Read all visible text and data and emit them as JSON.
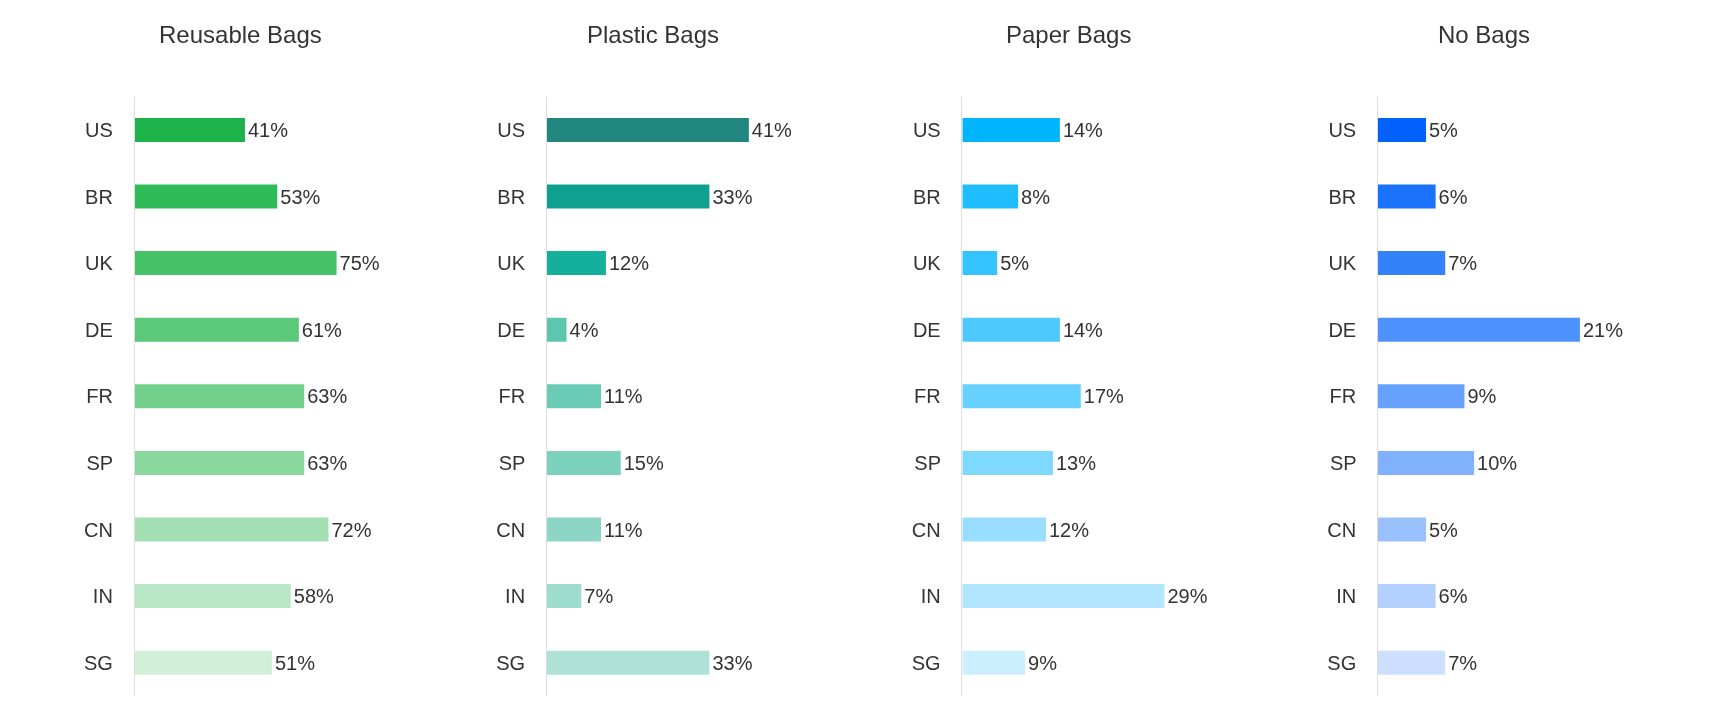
{
  "chart_data": [
    {
      "type": "bar",
      "orientation": "horizontal",
      "title": "Reusable Bags",
      "categories": [
        "US",
        "BR",
        "UK",
        "DE",
        "FR",
        "SP",
        "CN",
        "IN",
        "SG"
      ],
      "values": [
        41,
        53,
        75,
        61,
        63,
        63,
        72,
        58,
        51
      ],
      "value_labels": [
        "41%",
        "53%",
        "75%",
        "61%",
        "63%",
        "63%",
        "72%",
        "58%",
        "51%"
      ],
      "colors": [
        "#1db34a",
        "#2fbb57",
        "#45c268",
        "#5cc97a",
        "#73d08c",
        "#8bd89f",
        "#a2dfb2",
        "#b9e7c5",
        "#d0eed8"
      ]
    },
    {
      "type": "bar",
      "orientation": "horizontal",
      "title": "Plastic Bags",
      "categories": [
        "US",
        "BR",
        "UK",
        "DE",
        "FR",
        "SP",
        "CN",
        "IN",
        "SG"
      ],
      "values": [
        41,
        33,
        12,
        4,
        11,
        15,
        11,
        7,
        33
      ],
      "value_labels": [
        "41%",
        "33%",
        "12%",
        "4%",
        "11%",
        "15%",
        "11%",
        "7%",
        "33%"
      ],
      "colors": [
        "#21867e",
        "#0fa08f",
        "#14b09b",
        "#5cc6ae",
        "#6bccb6",
        "#7cd1bd",
        "#8dd6c5",
        "#9edccd",
        "#afe2d6"
      ]
    },
    {
      "type": "bar",
      "orientation": "horizontal",
      "title": "Paper Bags",
      "categories": [
        "US",
        "BR",
        "UK",
        "DE",
        "FR",
        "SP",
        "CN",
        "IN",
        "SG"
      ],
      "values": [
        14,
        8,
        5,
        14,
        17,
        13,
        12,
        29,
        9
      ],
      "value_labels": [
        "14%",
        "8%",
        "5%",
        "14%",
        "17%",
        "13%",
        "12%",
        "29%",
        "9%"
      ],
      "colors": [
        "#00b5fe",
        "#1ebefe",
        "#33c3fe",
        "#4ec9fe",
        "#66d0fe",
        "#7fd8fe",
        "#99defe",
        "#b2e6fe",
        "#cceffe"
      ]
    },
    {
      "type": "bar",
      "orientation": "horizontal",
      "title": "No Bags",
      "categories": [
        "US",
        "BR",
        "UK",
        "DE",
        "FR",
        "SP",
        "CN",
        "IN",
        "SG"
      ],
      "values": [
        5,
        6,
        7,
        21,
        9,
        10,
        5,
        6,
        7
      ],
      "value_labels": [
        "5%",
        "6%",
        "7%",
        "21%",
        "9%",
        "10%",
        "5%",
        "6%",
        "7%"
      ],
      "colors": [
        "#0062fa",
        "#1a72fb",
        "#3382fc",
        "#4d91fc",
        "#66a1fd",
        "#80b1fd",
        "#99c0fd",
        "#b3d0fe",
        "#ccdffe"
      ]
    }
  ]
}
